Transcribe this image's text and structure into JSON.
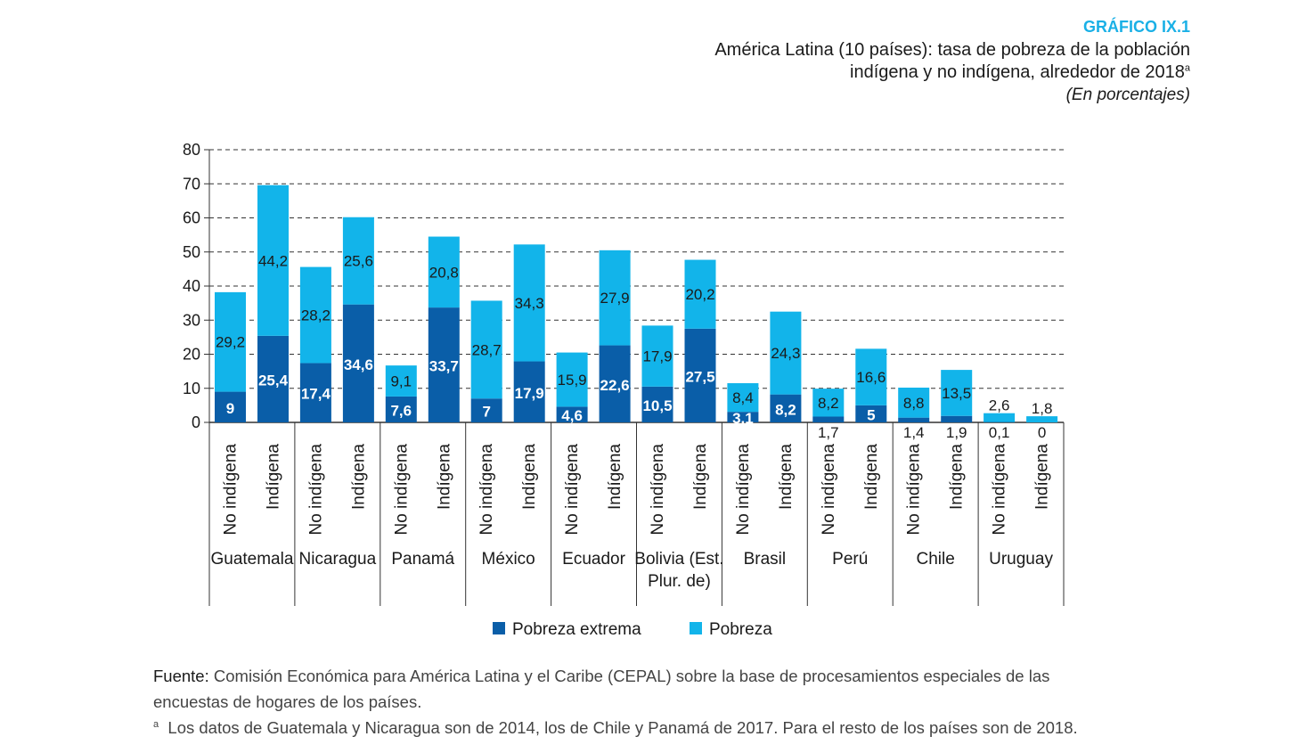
{
  "header": {
    "number": "GRÁFICO IX.1",
    "title_line1": "América Latina (10 países): tasa de pobreza de la población",
    "title_line2": "indígena y no indígena, alrededor de 2018",
    "title_sup": "a",
    "subtitle": "(En porcentajes)"
  },
  "colors": {
    "extreme": "#0a5ea8",
    "poverty": "#12b4ea",
    "title": "#1ab0e6"
  },
  "chart_data": {
    "type": "bar",
    "stacked": true,
    "ylim": [
      0,
      80
    ],
    "yticks": [
      0,
      10,
      20,
      30,
      40,
      50,
      60,
      70,
      80
    ],
    "grid": "dashed horizontal",
    "legend_placement": "bottom",
    "subcategories": [
      "No indígena",
      "Indígena"
    ],
    "groups": [
      {
        "name": "Guatemala",
        "name2": "",
        "extreme": [
          9,
          25.4
        ],
        "poverty": [
          29.2,
          44.2
        ]
      },
      {
        "name": "Nicaragua",
        "name2": "",
        "extreme": [
          17.4,
          34.6
        ],
        "poverty": [
          28.2,
          25.6
        ]
      },
      {
        "name": "Panamá",
        "name2": "",
        "extreme": [
          7.6,
          33.7
        ],
        "poverty": [
          9.1,
          20.8
        ]
      },
      {
        "name": "México",
        "name2": "",
        "extreme": [
          7,
          17.9
        ],
        "poverty": [
          28.7,
          34.3
        ]
      },
      {
        "name": "Ecuador",
        "name2": "",
        "extreme": [
          4.6,
          22.6
        ],
        "poverty": [
          15.9,
          27.9
        ]
      },
      {
        "name": "Bolivia (Est.",
        "name2": "Plur. de)",
        "extreme": [
          10.5,
          27.5
        ],
        "poverty": [
          17.9,
          20.2
        ]
      },
      {
        "name": "Brasil",
        "name2": "",
        "extreme": [
          3.1,
          8.2
        ],
        "poverty": [
          8.4,
          24.3
        ]
      },
      {
        "name": "Perú",
        "name2": "",
        "extreme": [
          1.7,
          5
        ],
        "poverty": [
          8.2,
          16.6
        ]
      },
      {
        "name": "Chile",
        "name2": "",
        "extreme": [
          1.4,
          1.9
        ],
        "poverty": [
          8.8,
          13.5
        ]
      },
      {
        "name": "Uruguay",
        "name2": "",
        "extreme": [
          0.1,
          0
        ],
        "poverty": [
          2.6,
          1.8
        ]
      }
    ],
    "series": [
      {
        "name": "Pobreza extrema"
      },
      {
        "name": "Pobreza"
      }
    ]
  },
  "footer": {
    "source_label": "Fuente:",
    "source_text": " Comisión Económica para América Latina y el Caribe (CEPAL) sobre la base de procesamientos especiales de las",
    "source_text2": "encuestas de hogares de los países.",
    "note_mark": "a",
    "note_text": "Los datos de Guatemala y Nicaragua son de 2014, los de Chile y Panamá de 2017. Para el resto de los países son de 2018."
  }
}
